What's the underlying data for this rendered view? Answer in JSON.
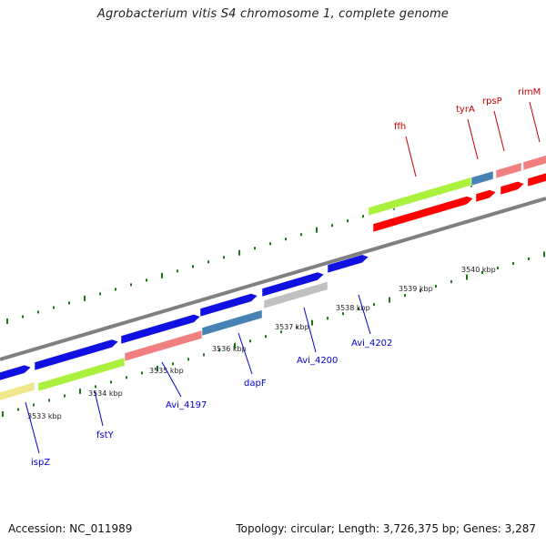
{
  "title": "Agrobacterium vitis S4 chromosome 1, complete genome",
  "accession_text": "Accession: NC_011989",
  "stats_text": "Topology: circular; Length: 3,726,375 bp; Genes: 3,287",
  "colors": {
    "backbone": "#808080",
    "tick": "#1a7a1a",
    "gene_blue": "#1010e0",
    "gene_green": "#aaf03c",
    "gene_gray": "#c0c0c0",
    "gene_steelblue": "#4682b4",
    "gene_pink": "#f08080",
    "gene_red": "#ff0000",
    "gene_yellow": "#f0e68c",
    "label_blue": "#0000cc",
    "label_red": "#cc0000"
  },
  "kbp_labels": [
    "3533 kbp",
    "3534 kbp",
    "3535 kbp",
    "3536 kbp",
    "3537 kbp",
    "3538 kbp",
    "3539 kbp",
    "3540 kbp"
  ],
  "gene_labels": [
    {
      "name": "ispZ",
      "color": "blue"
    },
    {
      "name": "fstY",
      "color": "blue"
    },
    {
      "name": "Avi_4197",
      "color": "blue"
    },
    {
      "name": "dapF",
      "color": "blue"
    },
    {
      "name": "Avi_4200",
      "color": "blue"
    },
    {
      "name": "Avi_4202",
      "color": "blue"
    },
    {
      "name": "ffh",
      "color": "red"
    },
    {
      "name": "tyrA",
      "color": "red"
    },
    {
      "name": "rpsP",
      "color": "red"
    },
    {
      "name": "rimM",
      "color": "red"
    }
  ]
}
